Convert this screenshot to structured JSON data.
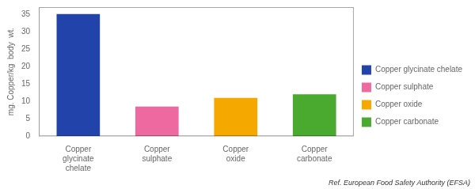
{
  "chart_data": {
    "type": "bar",
    "categories": [
      "Copper\nglycinate\nchelate",
      "Copper\nsulphate",
      "Copper\noxide",
      "Copper\ncarbonate"
    ],
    "series": [
      {
        "name": "Copper glycinate chelate",
        "color": "#2244aa",
        "values": [
          35,
          null,
          null,
          null
        ]
      },
      {
        "name": "Copper sulphate",
        "color": "#ee69a0",
        "values": [
          null,
          8.5,
          null,
          null
        ]
      },
      {
        "name": "Copper oxide",
        "color": "#f5a800",
        "values": [
          null,
          null,
          11,
          null
        ]
      },
      {
        "name": "Copper carbonate",
        "color": "#4aaa30",
        "values": [
          null,
          null,
          null,
          12
        ]
      }
    ],
    "ylabel": "mg. Copper/kg  body  wt.",
    "ylim": [
      0,
      37
    ],
    "yticks": [
      0,
      5,
      10,
      15,
      20,
      25,
      30,
      35
    ],
    "annotations": [
      "Ref. European Food Safety Authority (EFSA)"
    ],
    "legend": "right",
    "grid": false
  }
}
